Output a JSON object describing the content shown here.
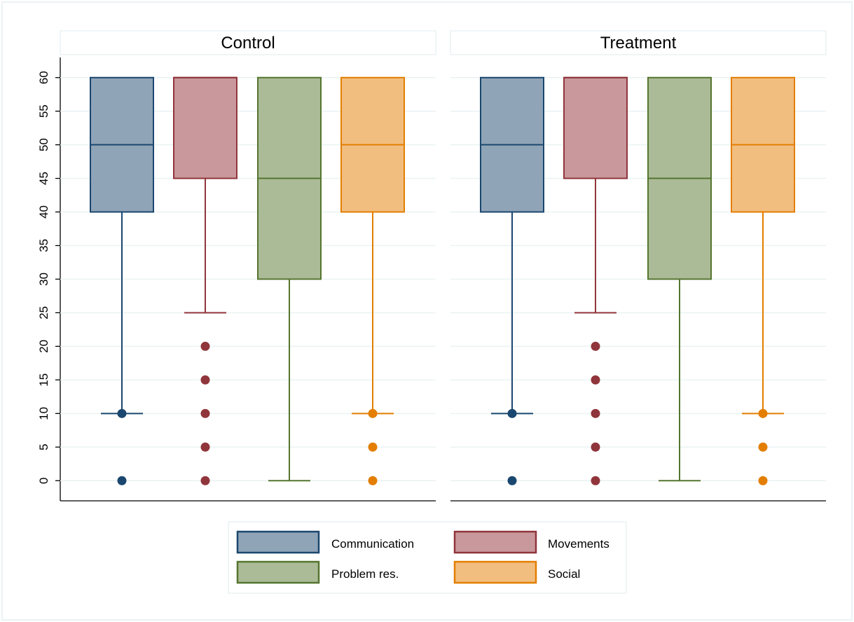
{
  "chart_data": {
    "type": "box",
    "y_ticks": [
      0,
      5,
      10,
      15,
      20,
      25,
      30,
      35,
      40,
      45,
      50,
      55,
      60
    ],
    "ylim": [
      -3,
      63
    ],
    "grid": true,
    "legend_position": "bottom",
    "series": [
      {
        "name": "Communication",
        "color": "#1a476f",
        "fill": "#90a4b7"
      },
      {
        "name": "Movements",
        "color": "#90353b",
        "fill": "#c8989c"
      },
      {
        "name": "Problem res.",
        "color": "#55752f",
        "fill": "#abbb97"
      },
      {
        "name": "Social",
        "color": "#e37e00",
        "fill": "#f2be80"
      }
    ],
    "panels": [
      {
        "title": "Control",
        "boxes": [
          {
            "q1": 40,
            "median": 50,
            "q3": 60,
            "whisker_low": 10,
            "whisker_high": 60,
            "outliers": [
              10,
              0
            ]
          },
          {
            "q1": 45,
            "median": 60,
            "q3": 60,
            "whisker_low": 25,
            "whisker_high": 60,
            "outliers": [
              20,
              15,
              10,
              5,
              0
            ]
          },
          {
            "q1": 30,
            "median": 45,
            "q3": 60,
            "whisker_low": 0,
            "whisker_high": 60,
            "outliers": []
          },
          {
            "q1": 40,
            "median": 50,
            "q3": 60,
            "whisker_low": 10,
            "whisker_high": 60,
            "outliers": [
              10,
              5,
              0
            ]
          }
        ]
      },
      {
        "title": "Treatment",
        "boxes": [
          {
            "q1": 40,
            "median": 50,
            "q3": 60,
            "whisker_low": 10,
            "whisker_high": 60,
            "outliers": [
              10,
              0
            ]
          },
          {
            "q1": 45,
            "median": 60,
            "q3": 60,
            "whisker_low": 25,
            "whisker_high": 60,
            "outliers": [
              20,
              15,
              10,
              5,
              0
            ]
          },
          {
            "q1": 30,
            "median": 45,
            "q3": 60,
            "whisker_low": 0,
            "whisker_high": 60,
            "outliers": []
          },
          {
            "q1": 40,
            "median": 50,
            "q3": 60,
            "whisker_low": 10,
            "whisker_high": 60,
            "outliers": [
              10,
              5,
              0
            ]
          }
        ]
      }
    ]
  }
}
